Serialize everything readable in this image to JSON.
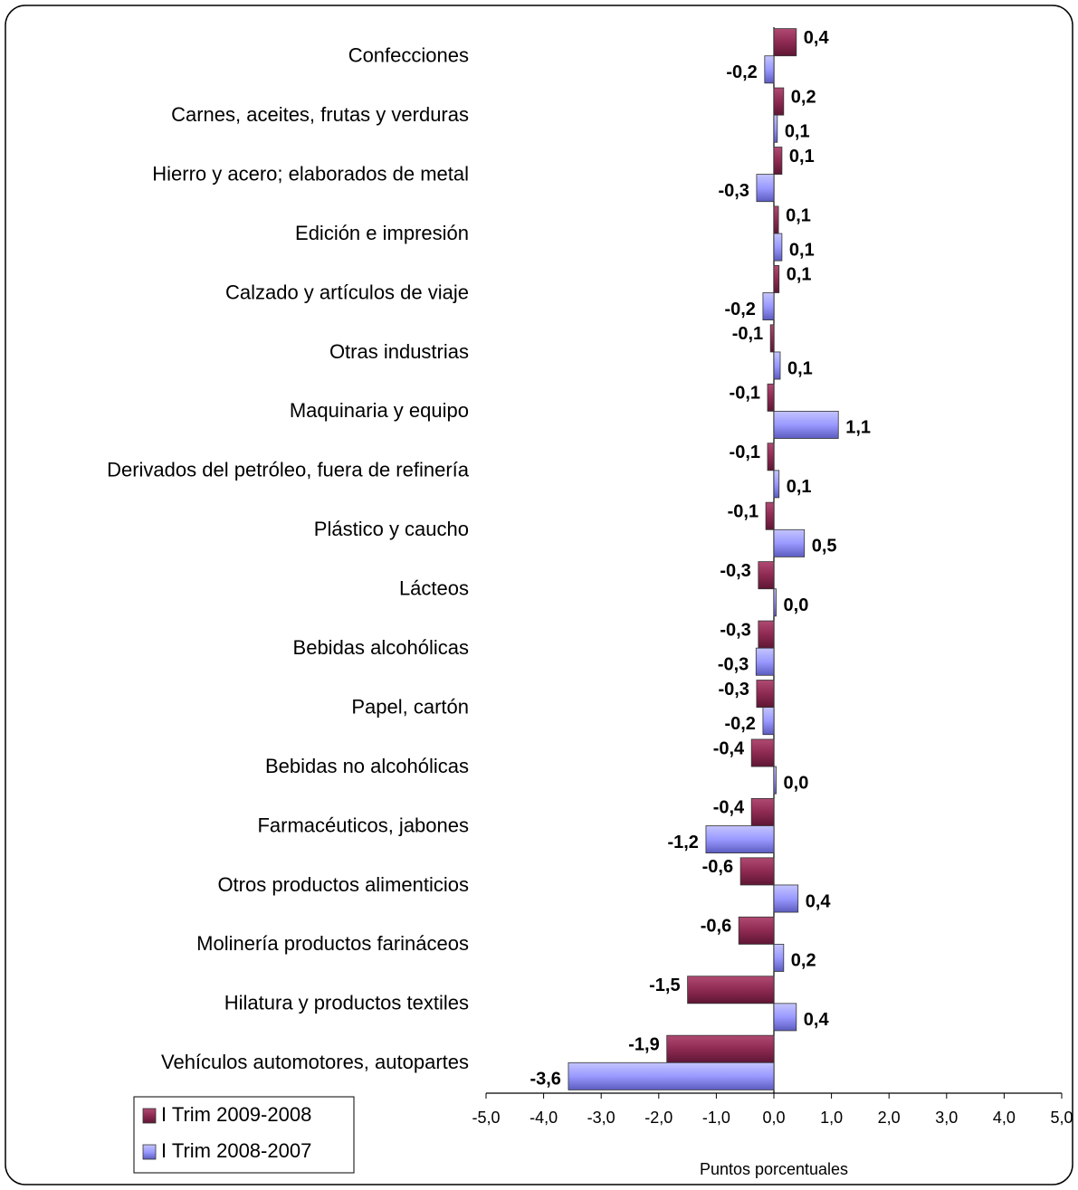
{
  "chart_data": {
    "type": "bar",
    "orientation": "horizontal",
    "x_axis_label": "Puntos porcentuales",
    "categories": [
      "Confecciones",
      "Carnes, aceites, frutas y verduras",
      "Hierro y acero; elaborados de metal ",
      "Edición e impresión",
      "Calzado y artículos de viaje",
      "Otras industrias",
      "Maquinaria y equipo",
      "Derivados del petróleo, fuera de refinería",
      "Plástico y caucho",
      "Lácteos",
      "Bebidas alcohólicas",
      "Papel, cartón",
      "Bebidas no alcohólicas",
      "Farmacéuticos, jabones",
      "Otros productos alimenticios",
      "Molinería productos farináceos",
      "Hilatura y productos textiles",
      "Vehículos automotores, autopartes"
    ],
    "series": [
      {
        "name": "I Trim 2009-2008",
        "color": "#8e2a52",
        "values": [
          0.39,
          0.17,
          0.14,
          0.08,
          0.09,
          -0.06,
          -0.11,
          -0.11,
          -0.14,
          -0.27,
          -0.27,
          -0.3,
          -0.39,
          -0.39,
          -0.58,
          -0.61,
          -1.5,
          -1.86
        ],
        "value_labels": [
          "0,4",
          "0,2",
          "0,1",
          "0,1",
          "0,1",
          "-0,1",
          "-0,1",
          "-0,1",
          "-0,1",
          "-0,3",
          "-0,3",
          "-0,3",
          "-0,4",
          "-0,4",
          "-0,6",
          "-0,6",
          "-1,5",
          "-1,9"
        ]
      },
      {
        "name": "I Trim 2008-2007",
        "color": "#9999ff",
        "values": [
          -0.16,
          0.06,
          -0.3,
          0.14,
          -0.19,
          0.11,
          1.12,
          0.09,
          0.53,
          0.04,
          -0.31,
          -0.19,
          0.04,
          -1.18,
          0.42,
          0.17,
          0.39,
          -3.57
        ],
        "value_labels": [
          "-0,2",
          "0,1",
          "-0,3",
          "0,1",
          "-0,2",
          "0,1",
          "1,1",
          "0,1",
          "0,5",
          "0,0",
          "-0,3",
          "-0,2",
          "0,0",
          "-1,2",
          "0,4",
          "0,2",
          "0,4",
          "-3,6"
        ]
      }
    ],
    "xlim": [
      -5,
      5
    ],
    "xticks": [
      {
        "value": -5,
        "label": "-5,0"
      },
      {
        "value": -4,
        "label": "-4,0"
      },
      {
        "value": -3,
        "label": "-3,0"
      },
      {
        "value": -2,
        "label": "-2,0"
      },
      {
        "value": -1,
        "label": "-1,0"
      },
      {
        "value": 0,
        "label": "0,0"
      },
      {
        "value": 1,
        "label": "1,0"
      },
      {
        "value": 2,
        "label": "2,0"
      },
      {
        "value": 3,
        "label": "3,0"
      },
      {
        "value": 4,
        "label": "4,0"
      },
      {
        "value": 5,
        "label": "5,0"
      }
    ],
    "grid": false,
    "legend_position": "bottom-left"
  }
}
